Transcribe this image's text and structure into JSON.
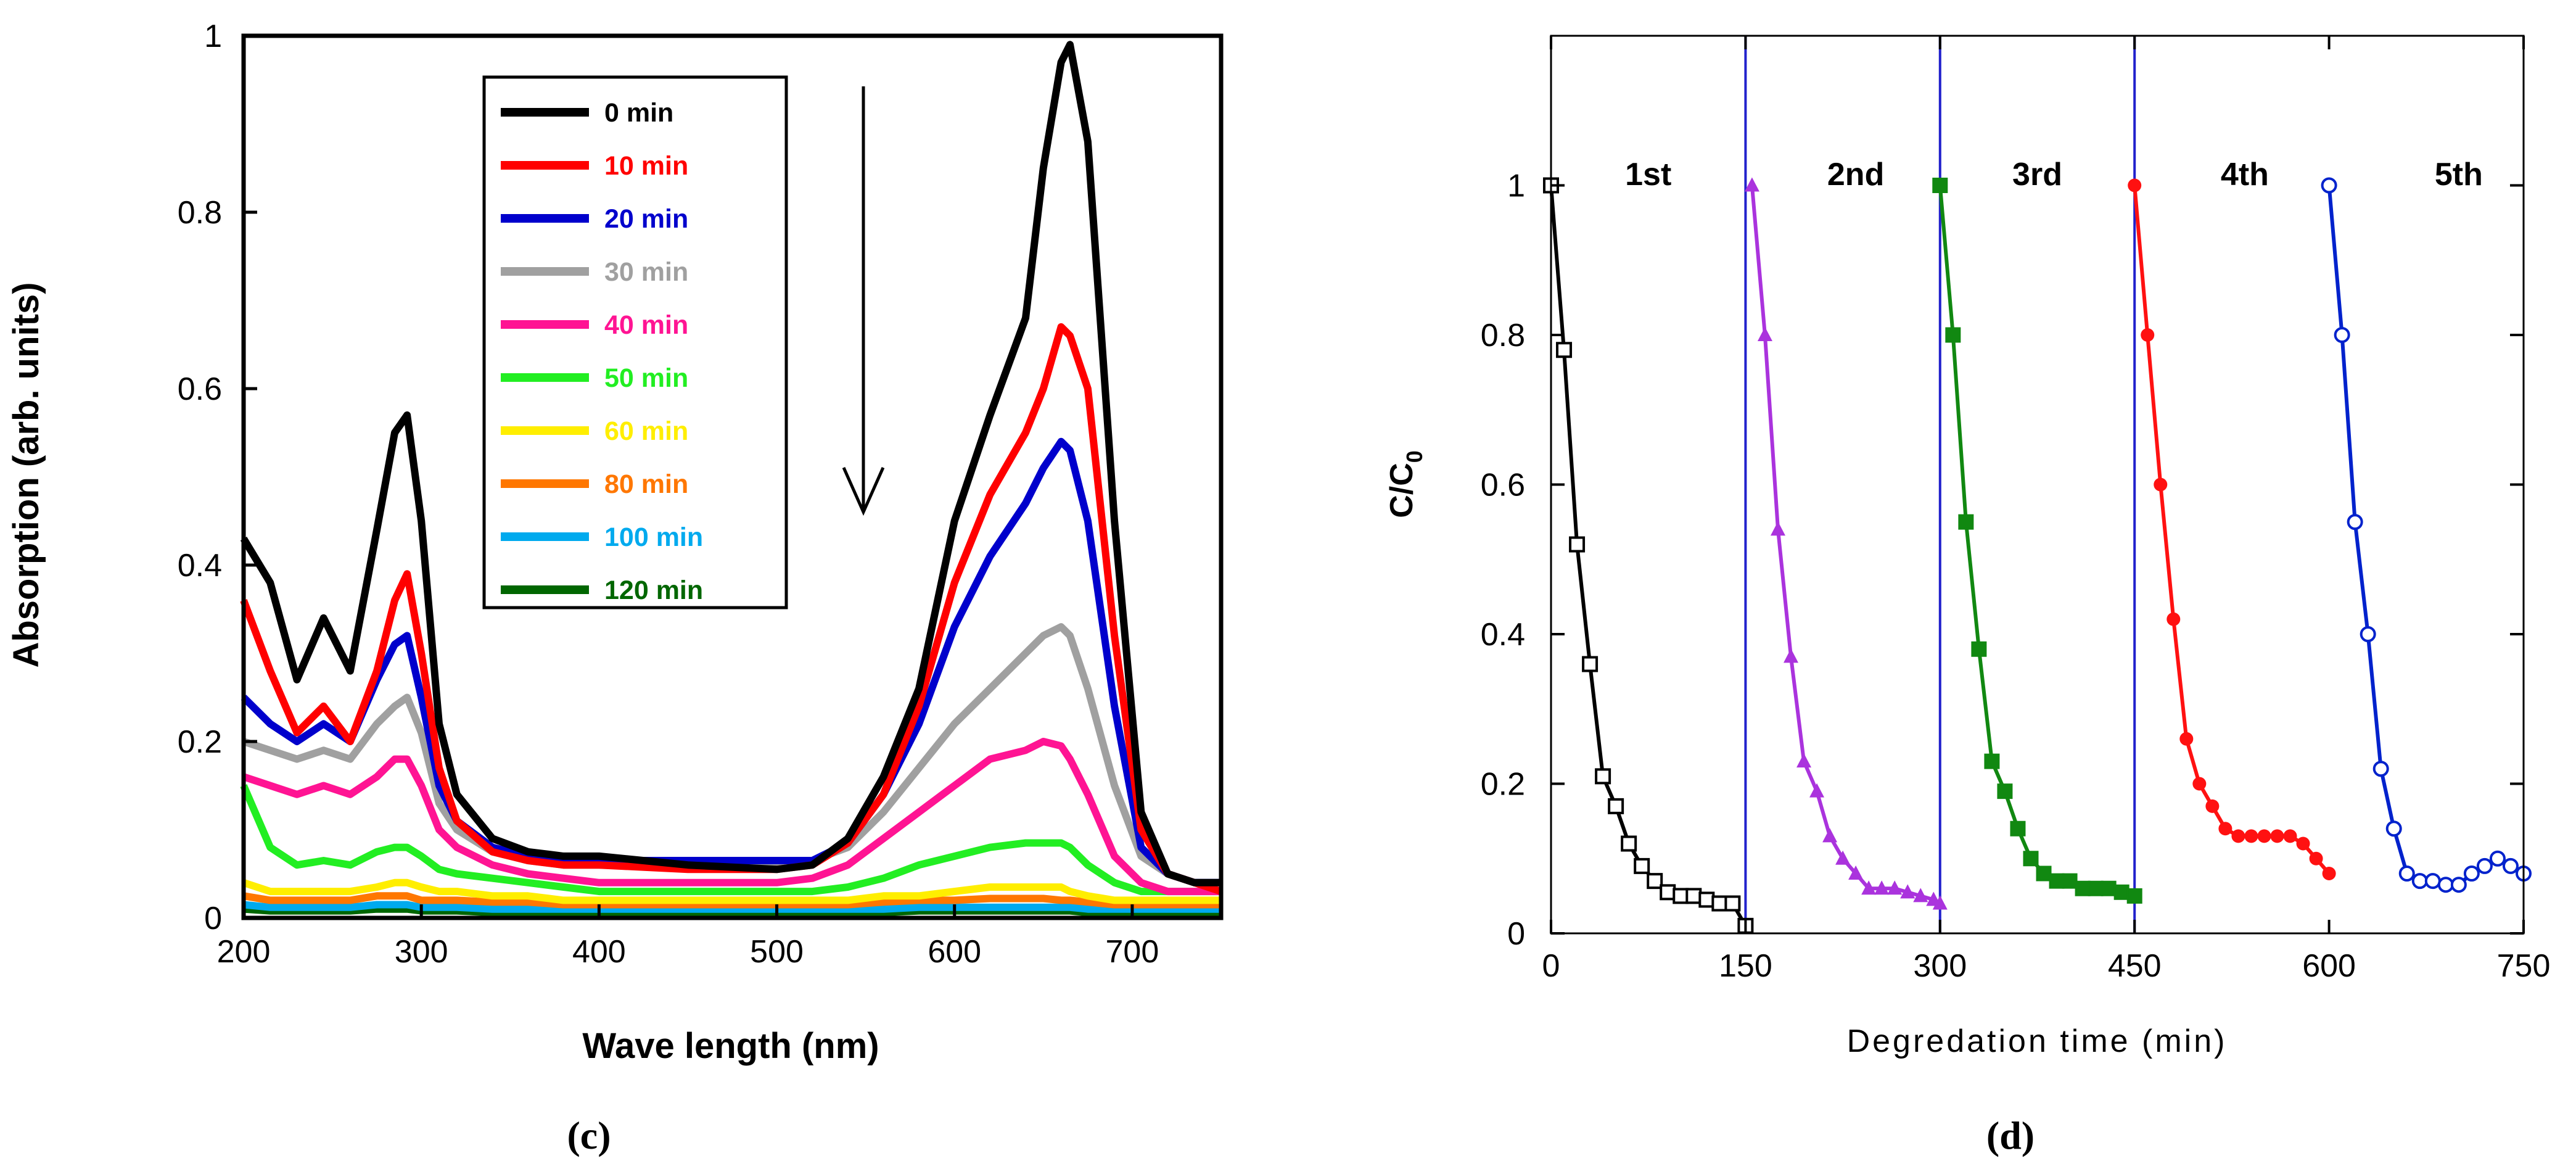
{
  "chart_data": [
    {
      "panel": "(c)",
      "type": "line",
      "title": "",
      "xlabel": "Wave length (nm)",
      "ylabel": "Absorption (arb. units)",
      "xlim": [
        200,
        750
      ],
      "ylim": [
        0,
        1
      ],
      "xticks": [
        "200",
        "300",
        "400",
        "500",
        "600",
        "700"
      ],
      "yticks": [
        "0",
        "0.2",
        "0.4",
        "0.6",
        "0.8",
        "1"
      ],
      "legend_position": "top-center",
      "annotation": "downward arrow at ~550 nm indicating decreasing absorption",
      "x": [
        200,
        215,
        230,
        245,
        260,
        275,
        285,
        292,
        300,
        310,
        320,
        340,
        360,
        380,
        400,
        450,
        500,
        520,
        540,
        560,
        580,
        600,
        620,
        640,
        650,
        660,
        665,
        675,
        690,
        705,
        720,
        735,
        750
      ],
      "series": [
        {
          "name": "0 min",
          "color": "#000000",
          "values": [
            0.43,
            0.38,
            0.27,
            0.34,
            0.28,
            0.44,
            0.55,
            0.57,
            0.45,
            0.22,
            0.14,
            0.09,
            0.075,
            0.07,
            0.07,
            0.06,
            0.055,
            0.06,
            0.09,
            0.16,
            0.26,
            0.45,
            0.57,
            0.68,
            0.85,
            0.97,
            0.99,
            0.88,
            0.45,
            0.12,
            0.05,
            0.04,
            0.04
          ]
        },
        {
          "name": "10 min",
          "color": "#ff0000",
          "values": [
            0.36,
            0.28,
            0.21,
            0.24,
            0.2,
            0.28,
            0.36,
            0.39,
            0.3,
            0.17,
            0.11,
            0.075,
            0.065,
            0.06,
            0.06,
            0.055,
            0.055,
            0.06,
            0.085,
            0.14,
            0.24,
            0.38,
            0.48,
            0.55,
            0.6,
            0.67,
            0.66,
            0.6,
            0.32,
            0.1,
            0.05,
            0.04,
            0.03
          ]
        },
        {
          "name": "20 min",
          "color": "#0000cc",
          "values": [
            0.25,
            0.22,
            0.2,
            0.22,
            0.2,
            0.27,
            0.31,
            0.32,
            0.25,
            0.15,
            0.11,
            0.08,
            0.07,
            0.065,
            0.065,
            0.065,
            0.065,
            0.065,
            0.085,
            0.14,
            0.22,
            0.33,
            0.41,
            0.47,
            0.51,
            0.54,
            0.53,
            0.45,
            0.24,
            0.08,
            0.05,
            0.04,
            0.04
          ]
        },
        {
          "name": "30 min",
          "color": "#a0a0a0",
          "values": [
            0.2,
            0.19,
            0.18,
            0.19,
            0.18,
            0.22,
            0.24,
            0.25,
            0.21,
            0.13,
            0.1,
            0.075,
            0.065,
            0.06,
            0.06,
            0.06,
            0.06,
            0.065,
            0.08,
            0.12,
            0.17,
            0.22,
            0.26,
            0.3,
            0.32,
            0.33,
            0.32,
            0.26,
            0.15,
            0.07,
            0.05,
            0.04,
            0.04
          ]
        },
        {
          "name": "40 min",
          "color": "#ff1493",
          "values": [
            0.16,
            0.15,
            0.14,
            0.15,
            0.14,
            0.16,
            0.18,
            0.18,
            0.15,
            0.1,
            0.08,
            0.06,
            0.05,
            0.045,
            0.04,
            0.04,
            0.04,
            0.045,
            0.06,
            0.09,
            0.12,
            0.15,
            0.18,
            0.19,
            0.2,
            0.195,
            0.18,
            0.14,
            0.07,
            0.04,
            0.03,
            0.03,
            0.03
          ]
        },
        {
          "name": "50 min",
          "color": "#22ee22",
          "values": [
            0.15,
            0.08,
            0.06,
            0.065,
            0.06,
            0.075,
            0.08,
            0.08,
            0.07,
            0.055,
            0.05,
            0.045,
            0.04,
            0.035,
            0.03,
            0.03,
            0.03,
            0.03,
            0.035,
            0.045,
            0.06,
            0.07,
            0.08,
            0.085,
            0.085,
            0.085,
            0.08,
            0.06,
            0.04,
            0.03,
            0.03,
            0.03,
            0.03
          ]
        },
        {
          "name": "60 min",
          "color": "#ffee00",
          "values": [
            0.04,
            0.03,
            0.03,
            0.03,
            0.03,
            0.035,
            0.04,
            0.04,
            0.035,
            0.03,
            0.03,
            0.025,
            0.025,
            0.02,
            0.02,
            0.02,
            0.02,
            0.02,
            0.02,
            0.025,
            0.025,
            0.03,
            0.035,
            0.035,
            0.035,
            0.035,
            0.03,
            0.025,
            0.02,
            0.02,
            0.02,
            0.02,
            0.02
          ]
        },
        {
          "name": "80 min",
          "color": "#ff7700",
          "values": [
            0.025,
            0.02,
            0.02,
            0.02,
            0.02,
            0.025,
            0.025,
            0.025,
            0.02,
            0.02,
            0.02,
            0.018,
            0.018,
            0.015,
            0.015,
            0.015,
            0.015,
            0.015,
            0.015,
            0.018,
            0.02,
            0.02,
            0.022,
            0.022,
            0.022,
            0.02,
            0.02,
            0.018,
            0.015,
            0.015,
            0.015,
            0.015,
            0.015
          ]
        },
        {
          "name": "100 min",
          "color": "#00aaee",
          "values": [
            0.015,
            0.012,
            0.012,
            0.012,
            0.012,
            0.015,
            0.015,
            0.015,
            0.012,
            0.012,
            0.012,
            0.01,
            0.01,
            0.01,
            0.01,
            0.01,
            0.01,
            0.01,
            0.01,
            0.01,
            0.012,
            0.012,
            0.012,
            0.012,
            0.012,
            0.012,
            0.012,
            0.01,
            0.01,
            0.01,
            0.01,
            0.01,
            0.01
          ]
        },
        {
          "name": "120 min",
          "color": "#006600",
          "values": [
            0.01,
            0.008,
            0.008,
            0.008,
            0.008,
            0.01,
            0.01,
            0.01,
            0.008,
            0.008,
            0.008,
            0.006,
            0.006,
            0.006,
            0.006,
            0.006,
            0.006,
            0.006,
            0.006,
            0.006,
            0.008,
            0.008,
            0.008,
            0.008,
            0.008,
            0.008,
            0.008,
            0.006,
            0.006,
            0.006,
            0.006,
            0.006,
            0.006
          ]
        }
      ]
    },
    {
      "panel": "(d)",
      "type": "line",
      "title": "",
      "xlabel": "Degredation time (min)",
      "ylabel": "C/C",
      "ylabel_subscript": "0",
      "xlim": [
        0,
        750
      ],
      "ylim": [
        0,
        1.2
      ],
      "xticks": [
        "0",
        "150",
        "300",
        "450",
        "600",
        "750"
      ],
      "yticks": [
        "0",
        "0.2",
        "0.4",
        "0.6",
        "0.8",
        "1"
      ],
      "cycle_dividers": [
        150,
        300,
        450
      ],
      "cycle_labels": [
        "1st",
        "2nd",
        "3rd",
        "4th",
        "5th"
      ],
      "series": [
        {
          "name": "1st",
          "color": "#000000",
          "marker": "open-square",
          "x": [
            0,
            10,
            20,
            30,
            40,
            50,
            60,
            70,
            80,
            90,
            100,
            110,
            120,
            130,
            140,
            150
          ],
          "y": [
            1.0,
            0.78,
            0.52,
            0.36,
            0.21,
            0.17,
            0.12,
            0.09,
            0.07,
            0.055,
            0.05,
            0.05,
            0.045,
            0.04,
            0.04,
            0.01
          ]
        },
        {
          "name": "2nd",
          "color": "#aa33dd",
          "marker": "triangle",
          "x": [
            155,
            165,
            175,
            185,
            195,
            205,
            215,
            225,
            235,
            245,
            255,
            265,
            275,
            285,
            295,
            300
          ],
          "y": [
            1.0,
            0.8,
            0.54,
            0.37,
            0.23,
            0.19,
            0.13,
            0.1,
            0.08,
            0.06,
            0.06,
            0.06,
            0.055,
            0.05,
            0.045,
            0.04
          ]
        },
        {
          "name": "3rd",
          "color": "#118811",
          "marker": "square",
          "x": [
            300,
            310,
            320,
            330,
            340,
            350,
            360,
            370,
            380,
            390,
            400,
            410,
            420,
            430,
            440,
            450
          ],
          "y": [
            1.0,
            0.8,
            0.55,
            0.38,
            0.23,
            0.19,
            0.14,
            0.1,
            0.08,
            0.07,
            0.07,
            0.06,
            0.06,
            0.06,
            0.055,
            0.05
          ]
        },
        {
          "name": "4th",
          "color": "#ff1111",
          "marker": "circle",
          "x": [
            450,
            460,
            470,
            480,
            490,
            500,
            510,
            520,
            530,
            540,
            550,
            560,
            570,
            580,
            590,
            600
          ],
          "y": [
            1.0,
            0.8,
            0.6,
            0.42,
            0.26,
            0.2,
            0.17,
            0.14,
            0.13,
            0.13,
            0.13,
            0.13,
            0.13,
            0.12,
            0.1,
            0.08
          ]
        },
        {
          "name": "5th",
          "color": "#0022cc",
          "marker": "open-circle",
          "x": [
            600,
            610,
            620,
            630,
            640,
            650,
            660,
            670,
            680,
            690,
            700,
            710,
            720,
            730,
            740,
            750
          ],
          "y": [
            1.0,
            0.8,
            0.55,
            0.4,
            0.22,
            0.14,
            0.08,
            0.07,
            0.07,
            0.065,
            0.065,
            0.08,
            0.09,
            0.1,
            0.09,
            0.08
          ]
        }
      ]
    }
  ]
}
